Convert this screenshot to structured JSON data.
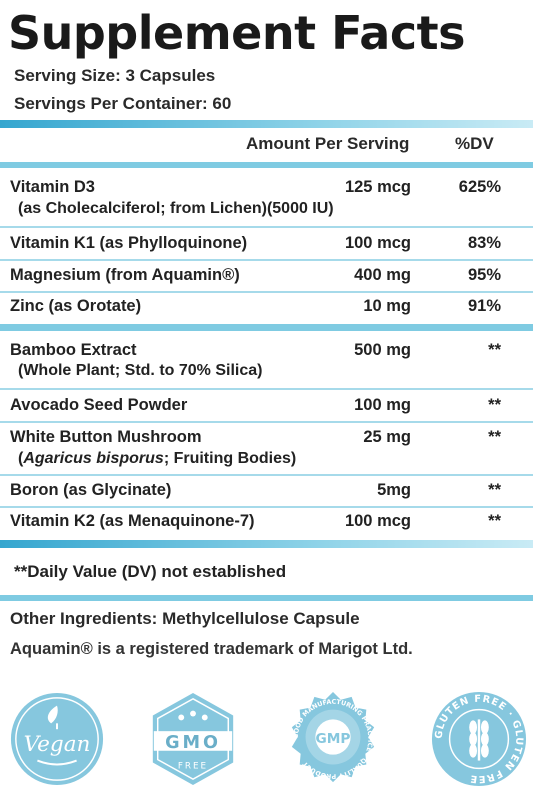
{
  "title": "Supplement Facts",
  "serving_size": "Serving Size: 3 Capsules",
  "servings_per_container": "Servings Per Container: 60",
  "header": {
    "amount": "Amount Per Serving",
    "dv": "%DV"
  },
  "rows": [
    {
      "name": "Vitamin D3",
      "sub": "(as Cholecalciferol; from Lichen)(5000 IU)",
      "amount": "125 mcg",
      "dv": "625%"
    },
    {
      "name": "Vitamin K1 (as Phylloquinone)",
      "amount": "100 mcg",
      "dv": "83%"
    },
    {
      "name": "Magnesium (from Aquamin®)",
      "amount": "400 mg",
      "dv": "95%"
    },
    {
      "name": "Zinc (as Orotate)",
      "amount": "10 mg",
      "dv": "91%"
    },
    {
      "name": "Bamboo Extract",
      "sub": "(Whole Plant; Std. to 70% Silica)",
      "amount": "500 mg",
      "dv": "**"
    },
    {
      "name": "Avocado Seed Powder",
      "amount": "100 mg",
      "dv": "**"
    },
    {
      "name": "White Button Mushroom",
      "sub_italic": "Agaricus bisporus",
      "sub_rest": "; Fruiting Bodies)",
      "amount": "25 mg",
      "dv": "**"
    },
    {
      "name": "Boron (as Glycinate)",
      "amount": "5mg",
      "dv": "**"
    },
    {
      "name": "Vitamin K2 (as Menaquinone-7)",
      "amount": "100 mcg",
      "dv": "**"
    }
  ],
  "dv_note": "**Daily Value (DV) not established",
  "other_ingredients": "Other Ingredients: Methylcellulose Capsule",
  "trademark": "Aquamin® is a registered trademark of Marigot Ltd.",
  "badges": [
    {
      "icon": "vegan-badge-icon",
      "text": "Vegan"
    },
    {
      "icon": "gmo-free-badge-icon",
      "text": "GMO",
      "sub": "FREE"
    },
    {
      "icon": "gmp-badge-icon",
      "text": "GMP",
      "ring": "GOOD MANUFACTURING PRACTICE · QUALITY PRODUCT"
    },
    {
      "icon": "gluten-free-badge-icon",
      "ring": "GLUTEN FREE · GLUTEN FREE"
    }
  ],
  "colors": {
    "accent": "#6ec3dc",
    "badge": "#86c7de"
  }
}
